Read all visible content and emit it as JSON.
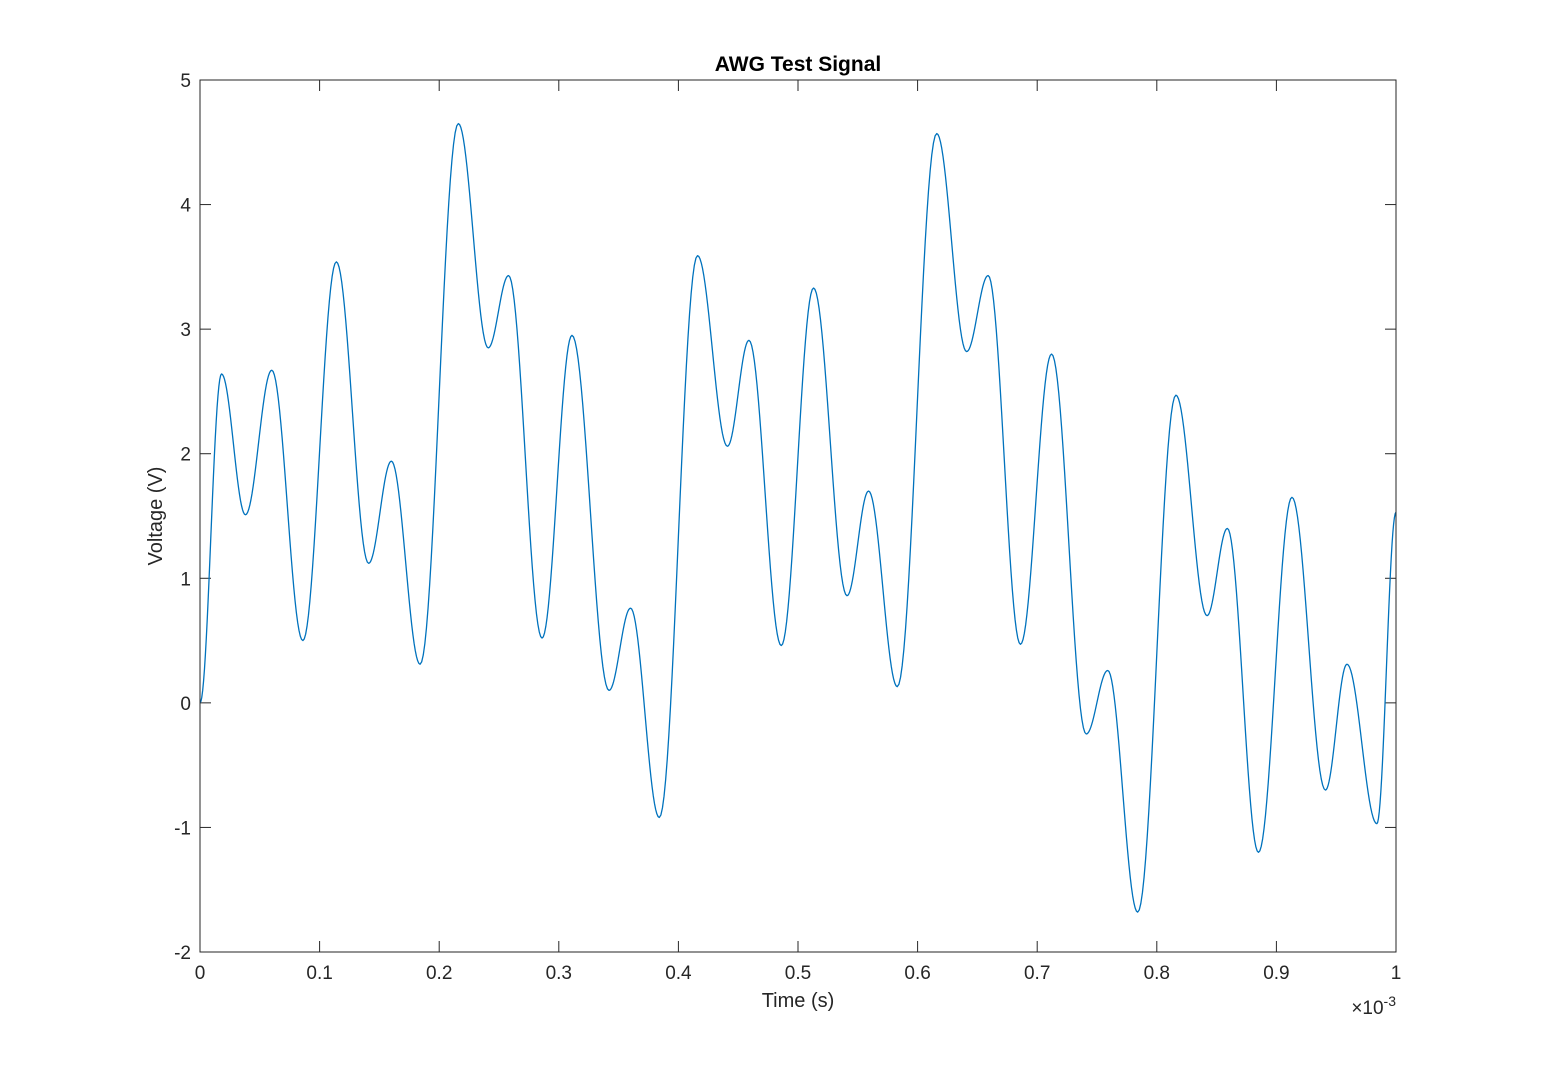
{
  "chart_data": {
    "type": "line",
    "title": "AWG Test Signal",
    "xlabel": "Time (s)",
    "ylabel": "Voltage (V)",
    "x_exponent_label": {
      "base": "×10",
      "exponent": "-3"
    },
    "xlim": [
      0,
      0.001
    ],
    "ylim": [
      -2,
      5
    ],
    "x_ticks": [
      0,
      0.1,
      0.2,
      0.3,
      0.4,
      0.5,
      0.6,
      0.7,
      0.8,
      0.9,
      1
    ],
    "x_tick_labels": [
      "0",
      "0.1",
      "0.2",
      "0.3",
      "0.4",
      "0.5",
      "0.6",
      "0.7",
      "0.8",
      "0.9",
      "1"
    ],
    "y_ticks": [
      -2,
      -1,
      0,
      1,
      2,
      3,
      4,
      5
    ],
    "y_tick_labels": [
      "-2",
      "-1",
      "0",
      "1",
      "2",
      "3",
      "4",
      "5"
    ],
    "grid": false,
    "line_color": "#0072BD",
    "series": [
      {
        "x": [
          0.0,
          1.8e-05,
          3.8e-05,
          6e-05,
          8.6e-05,
          0.000114,
          0.000141,
          0.00016,
          0.000184,
          0.000216,
          0.000241,
          0.000258,
          0.000286,
          0.000311,
          0.000342,
          0.00036,
          0.000384,
          0.000416,
          0.000441,
          0.000459,
          0.000486,
          0.000513,
          0.000541,
          0.000559,
          0.000583,
          0.000616,
          0.000641,
          0.000659,
          0.000686,
          0.000712,
          0.000741,
          0.000759,
          0.000784,
          0.000816,
          0.000842,
          0.000859,
          0.000885,
          0.000913,
          0.000941,
          0.000959,
          0.000984,
          0.001
        ],
        "y": [
          0.0,
          2.64,
          1.51,
          2.67,
          0.5,
          3.54,
          1.12,
          1.94,
          0.31,
          4.65,
          2.85,
          3.43,
          0.52,
          2.95,
          0.1,
          0.76,
          -0.92,
          3.59,
          2.06,
          2.91,
          0.46,
          3.33,
          0.86,
          1.7,
          0.13,
          4.57,
          2.82,
          3.43,
          0.47,
          2.8,
          -0.25,
          0.26,
          -1.68,
          2.47,
          0.7,
          1.4,
          -1.2,
          1.65,
          -0.7,
          0.31,
          -0.97,
          1.53
        ]
      }
    ]
  }
}
